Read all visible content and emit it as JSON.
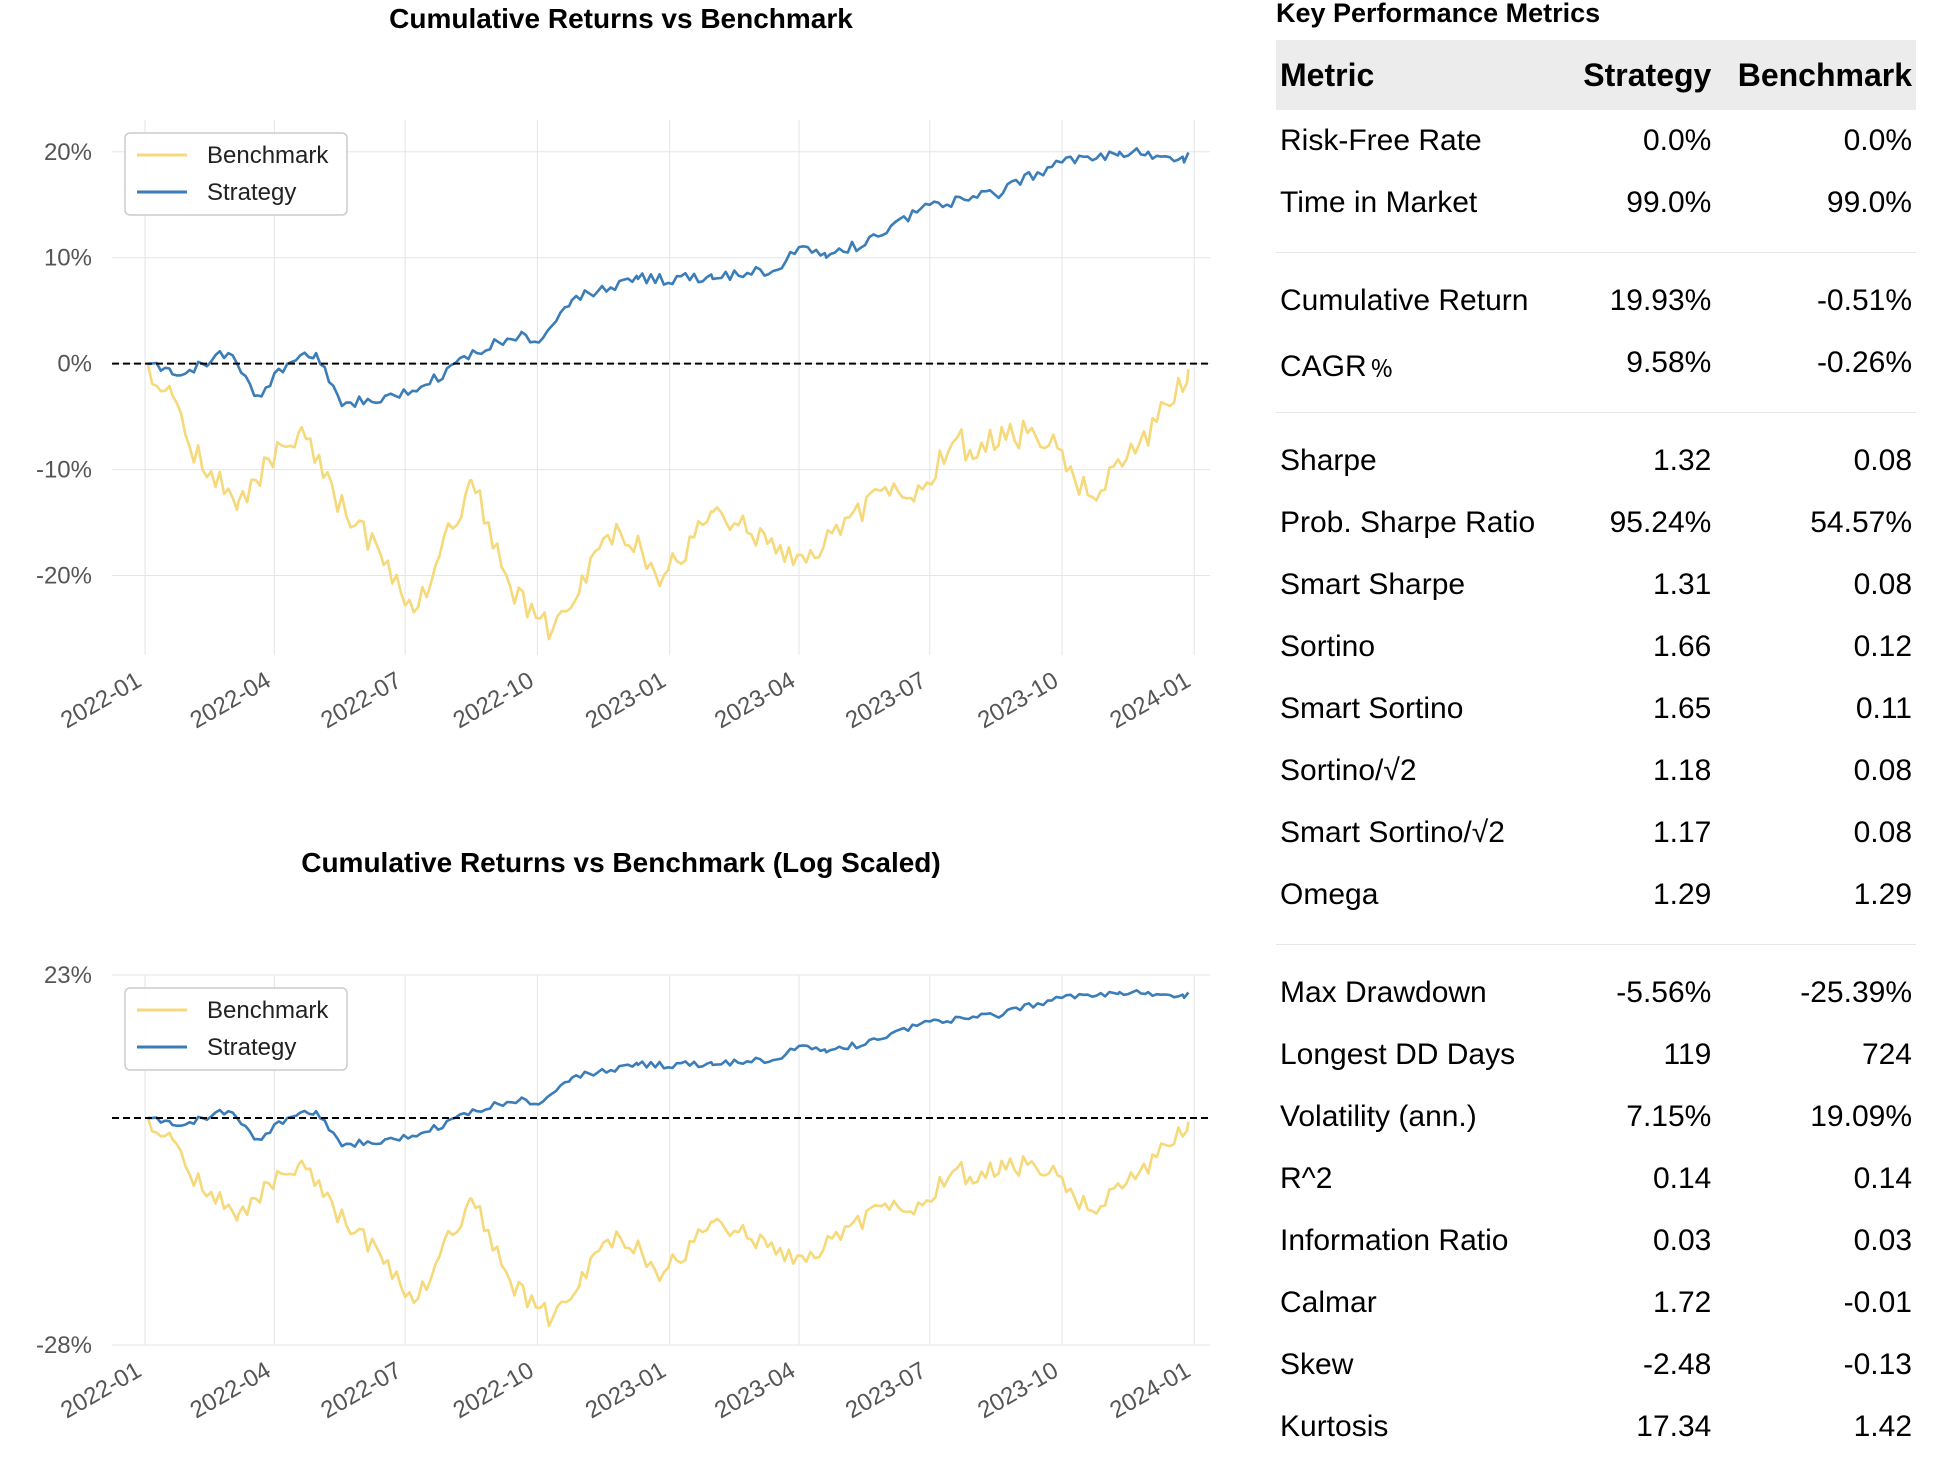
{
  "colors": {
    "benchmark": "#f5d97a",
    "strategy": "#3a7db8",
    "grid": "#e5e5e5",
    "zero_line": "#000000"
  },
  "chart_data": [
    {
      "type": "line",
      "title": "Cumulative Returns vs Benchmark",
      "xlabel": "",
      "ylabel": "",
      "x_tick_labels": [
        "2022-01",
        "2022-04",
        "2022-07",
        "2022-10",
        "2023-01",
        "2023-04",
        "2023-07",
        "2023-10",
        "2024-01"
      ],
      "y_tick_labels": [
        "20%",
        "10%",
        "0%",
        "-10%",
        "-20%"
      ],
      "y_ticks": [
        20,
        10,
        0,
        -10,
        -20
      ],
      "ylim": [
        -27.5,
        23
      ],
      "xlim": [
        "2021-12-09",
        "2024-01-12"
      ],
      "y_scale": "linear",
      "grid": true,
      "legend": {
        "position": "top-left",
        "entries": [
          "Benchmark",
          "Strategy"
        ]
      },
      "reference_line": {
        "y": 0,
        "style": "dashed"
      },
      "series": [
        {
          "name": "Benchmark",
          "x": [
            "2022-01-03",
            "2022-01-20",
            "2022-02-10",
            "2022-03-07",
            "2022-03-28",
            "2022-04-20",
            "2022-05-12",
            "2022-06-16",
            "2022-07-10",
            "2022-08-16",
            "2022-09-12",
            "2022-09-30",
            "2022-10-12",
            "2022-11-01",
            "2022-11-28",
            "2022-12-28",
            "2023-01-31",
            "2023-03-10",
            "2023-03-28",
            "2023-04-24",
            "2023-05-28",
            "2023-06-20",
            "2023-07-20",
            "2023-07-31",
            "2023-08-20",
            "2023-09-28",
            "2023-10-10",
            "2023-10-28",
            "2023-11-15",
            "2023-12-15",
            "2023-12-28"
          ],
          "values": [
            0,
            -3,
            -10,
            -13,
            -9,
            -6,
            -12,
            -19,
            -23,
            -11,
            -21,
            -24,
            -25,
            -20,
            -16,
            -20,
            -14,
            -17,
            -19,
            -16,
            -12,
            -13,
            -7,
            -9,
            -6,
            -8,
            -11,
            -12,
            -9,
            -4,
            -0.51
          ]
        },
        {
          "name": "Strategy",
          "x": [
            "2022-01-03",
            "2022-01-20",
            "2022-02-10",
            "2022-02-28",
            "2022-03-20",
            "2022-04-10",
            "2022-04-30",
            "2022-05-18",
            "2022-06-18",
            "2022-07-15",
            "2022-08-20",
            "2022-09-20",
            "2022-10-02",
            "2022-10-25",
            "2022-12-10",
            "2023-01-31",
            "2023-03-20",
            "2023-04-01",
            "2023-04-20",
            "2023-05-26",
            "2023-07-01",
            "2023-08-15",
            "2023-09-15",
            "2023-10-01",
            "2023-11-10",
            "2023-11-30",
            "2023-12-25",
            "2023-12-28"
          ],
          "values": [
            0,
            -1,
            0,
            1,
            -3,
            0,
            1,
            -4,
            -3,
            -2,
            1,
            3,
            2,
            6,
            8,
            8,
            9,
            11,
            10,
            12,
            15,
            16,
            18,
            19,
            20,
            20,
            19,
            19.93
          ]
        }
      ]
    },
    {
      "type": "line",
      "title": "Cumulative Returns vs Benchmark (Log Scaled)",
      "xlabel": "",
      "ylabel": "",
      "x_tick_labels": [
        "2022-01",
        "2022-04",
        "2022-07",
        "2022-10",
        "2023-01",
        "2023-04",
        "2023-07",
        "2023-10",
        "2024-01"
      ],
      "y_tick_labels": [
        "23%",
        "-28%"
      ],
      "y_ticks": [
        23,
        -28
      ],
      "ylim": [
        -28,
        23
      ],
      "xlim": [
        "2021-12-09",
        "2024-01-12"
      ],
      "y_scale": "log",
      "grid": true,
      "legend": {
        "position": "top-left",
        "entries": [
          "Benchmark",
          "Strategy"
        ]
      },
      "reference_line": {
        "y": 0,
        "style": "dashed"
      },
      "series": [
        {
          "name": "Benchmark",
          "x": [
            "2022-01-03",
            "2022-01-20",
            "2022-02-10",
            "2022-03-07",
            "2022-03-28",
            "2022-04-20",
            "2022-05-12",
            "2022-06-16",
            "2022-07-10",
            "2022-08-16",
            "2022-09-12",
            "2022-09-30",
            "2022-10-12",
            "2022-11-01",
            "2022-11-28",
            "2022-12-28",
            "2023-01-31",
            "2023-03-10",
            "2023-03-28",
            "2023-04-24",
            "2023-05-28",
            "2023-06-20",
            "2023-07-20",
            "2023-07-31",
            "2023-08-20",
            "2023-09-28",
            "2023-10-10",
            "2023-10-28",
            "2023-11-15",
            "2023-12-15",
            "2023-12-28"
          ],
          "values": [
            0,
            -3,
            -10,
            -13,
            -9,
            -6,
            -12,
            -19,
            -23,
            -11,
            -21,
            -24,
            -25,
            -20,
            -16,
            -20,
            -14,
            -17,
            -19,
            -16,
            -12,
            -13,
            -7,
            -9,
            -6,
            -8,
            -11,
            -12,
            -9,
            -4,
            -0.51
          ]
        },
        {
          "name": "Strategy",
          "x": [
            "2022-01-03",
            "2022-01-20",
            "2022-02-10",
            "2022-02-28",
            "2022-03-20",
            "2022-04-10",
            "2022-04-30",
            "2022-05-18",
            "2022-06-18",
            "2022-07-15",
            "2022-08-20",
            "2022-09-20",
            "2022-10-02",
            "2022-10-25",
            "2022-12-10",
            "2023-01-31",
            "2023-03-20",
            "2023-04-01",
            "2023-04-20",
            "2023-05-26",
            "2023-07-01",
            "2023-08-15",
            "2023-09-15",
            "2023-10-01",
            "2023-11-10",
            "2023-11-30",
            "2023-12-25",
            "2023-12-28"
          ],
          "values": [
            0,
            -1,
            0,
            1,
            -3,
            0,
            1,
            -4,
            -3,
            -2,
            1,
            3,
            2,
            6,
            8,
            8,
            9,
            11,
            10,
            12,
            15,
            16,
            18,
            19,
            20,
            20,
            19,
            19.93
          ]
        }
      ]
    }
  ],
  "metrics": {
    "title": "Key Performance Metrics",
    "headers": [
      "Metric",
      "Strategy",
      "Benchmark"
    ],
    "groups": [
      [
        [
          "Risk-Free Rate",
          "0.0%",
          "0.0%"
        ],
        [
          "Time in Market",
          "99.0%",
          "99.0%"
        ]
      ],
      [
        [
          "Cumulative Return",
          "19.93%",
          "-0.51%"
        ],
        [
          "CAGR﹪",
          "9.58%",
          "-0.26%"
        ]
      ],
      [
        [
          "Sharpe",
          "1.32",
          "0.08"
        ],
        [
          "Prob. Sharpe Ratio",
          "95.24%",
          "54.57%"
        ],
        [
          "Smart Sharpe",
          "1.31",
          "0.08"
        ],
        [
          "Sortino",
          "1.66",
          "0.12"
        ],
        [
          "Smart Sortino",
          "1.65",
          "0.11"
        ],
        [
          "Sortino/√2",
          "1.18",
          "0.08"
        ],
        [
          "Smart Sortino/√2",
          "1.17",
          "0.08"
        ],
        [
          "Omega",
          "1.29",
          "1.29"
        ]
      ],
      [
        [
          "Max Drawdown",
          "-5.56%",
          "-25.39%"
        ],
        [
          "Longest DD Days",
          "119",
          "724"
        ],
        [
          "Volatility (ann.)",
          "7.15%",
          "19.09%"
        ],
        [
          "R^2",
          "0.14",
          "0.14"
        ],
        [
          "Information Ratio",
          "0.03",
          "0.03"
        ],
        [
          "Calmar",
          "1.72",
          "-0.01"
        ],
        [
          "Skew",
          "-2.48",
          "-0.13"
        ],
        [
          "Kurtosis",
          "17.34",
          "1.42"
        ]
      ]
    ]
  }
}
